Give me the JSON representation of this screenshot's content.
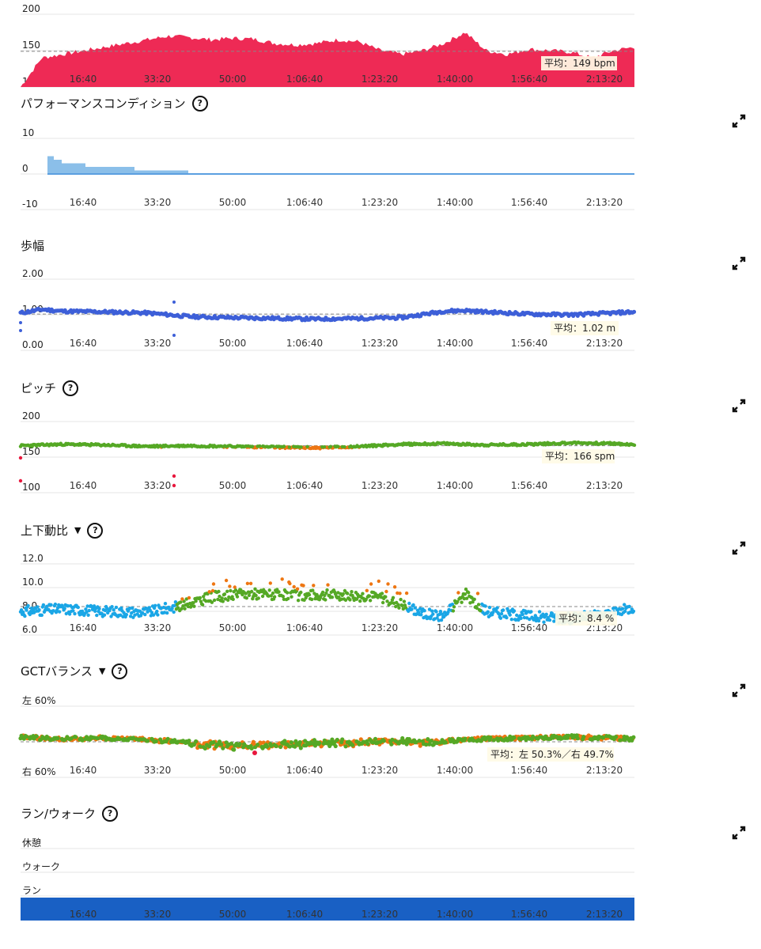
{
  "x_ticks": [
    "16:40",
    "33:20",
    "50:00",
    "1:06:40",
    "1:23:20",
    "1:40:00",
    "1:56:40",
    "2:13:20"
  ],
  "colors": {
    "heart_rate": "#ee2a55",
    "performance": "#8bbfe9",
    "performance_line": "#5b9fe0",
    "stride": "#3d5fd8",
    "green": "#55a825",
    "orange": "#ee7612",
    "blue": "#1aa6e6",
    "red": "#e8173d",
    "run_walk": "#1960c4",
    "grid": "#e6e6e6"
  },
  "panels": {
    "heart_rate": {
      "y_labels": [
        "200",
        "150",
        "100"
      ],
      "avg_label": "平均：149 bpm",
      "chart_data": {
        "type": "area",
        "y_ticks": [
          100,
          150,
          200
        ],
        "avg": 149,
        "x": [
          0,
          5,
          10,
          15,
          20,
          25,
          30,
          35,
          40,
          45,
          50,
          55,
          60,
          65,
          70,
          75,
          80,
          85,
          90,
          95,
          100,
          105,
          110,
          115,
          120,
          125,
          130,
          135,
          140,
          145
        ],
        "y": [
          100,
          140,
          145,
          150,
          155,
          160,
          165,
          170,
          168,
          165,
          167,
          166,
          160,
          158,
          160,
          165,
          162,
          150,
          145,
          150,
          160,
          175,
          150,
          145,
          152,
          150,
          148,
          140,
          150,
          155
        ],
        "ylim": [
          100,
          200
        ]
      }
    },
    "performance": {
      "title": "パフォーマンスコンディション",
      "y_labels": [
        "10",
        "0",
        "-10"
      ],
      "chart_data": {
        "type": "area",
        "y_ticks": [
          -10,
          0,
          10
        ],
        "x": [
          0,
          1,
          3,
          5,
          10,
          20,
          30,
          40,
          80,
          145
        ],
        "y": [
          5,
          5,
          4,
          3,
          2,
          2,
          1,
          0,
          0,
          0
        ],
        "ylim": [
          -10,
          10
        ]
      }
    },
    "stride": {
      "title": "歩幅",
      "y_labels": [
        "2.00",
        "1.00",
        "0.00"
      ],
      "avg_label": "平均：1.02 m",
      "chart_data": {
        "type": "scatter",
        "y_ticks": [
          0,
          1,
          2
        ],
        "avg": 1.02,
        "x": [
          0,
          5,
          10,
          20,
          30,
          40,
          50,
          60,
          70,
          80,
          90,
          100,
          105,
          110,
          120,
          130,
          140,
          145
        ],
        "y": [
          1.05,
          1.15,
          1.1,
          1.08,
          1.05,
          0.95,
          0.92,
          0.9,
          0.88,
          0.9,
          0.92,
          1.1,
          1.12,
          1.08,
          1.02,
          1.0,
          1.05,
          1.08
        ],
        "ylim": [
          0,
          2
        ]
      }
    },
    "cadence": {
      "title": "ピッチ",
      "y_labels": [
        "200",
        "150",
        "100"
      ],
      "avg_label": "平均：166 spm",
      "chart_data": {
        "type": "scatter",
        "y_ticks": [
          100,
          150,
          200
        ],
        "avg": 166,
        "x": [
          0,
          10,
          20,
          30,
          40,
          50,
          60,
          70,
          80,
          90,
          100,
          110,
          120,
          130,
          140,
          145
        ],
        "y": [
          166,
          168,
          167,
          165,
          166,
          165,
          164,
          163,
          165,
          168,
          169,
          167,
          168,
          170,
          169,
          167
        ],
        "ylim": [
          100,
          200
        ]
      }
    },
    "vertical_ratio": {
      "title": "上下動比",
      "y_labels": [
        "12.0",
        "10.0",
        "8.0",
        "6.0"
      ],
      "avg_label": "平均：8.4 %",
      "chart_data": {
        "type": "scatter",
        "y_ticks": [
          6,
          8,
          10,
          12
        ],
        "avg": 8.4,
        "x": [
          0,
          10,
          20,
          30,
          38,
          45,
          55,
          65,
          75,
          85,
          90,
          95,
          100,
          105,
          110,
          120,
          130,
          140,
          145
        ],
        "y": [
          8.0,
          8.2,
          8.0,
          7.9,
          8.5,
          9.2,
          9.5,
          9.3,
          9.4,
          9.2,
          8.6,
          7.8,
          7.6,
          9.5,
          8.0,
          7.6,
          7.4,
          7.8,
          8.4
        ],
        "ylim": [
          6,
          12
        ]
      }
    },
    "gct_balance": {
      "title": "GCTバランス",
      "y_labels": [
        "左 60%",
        "右 60%"
      ],
      "avg_label": "平均：左 50.3%／右 49.7%",
      "chart_data": {
        "type": "scatter",
        "avg": 50.3,
        "ylim": [
          -60,
          60
        ],
        "x": [
          0,
          10,
          20,
          30,
          40,
          50,
          60,
          70,
          80,
          90,
          100,
          110,
          120,
          130,
          140,
          145
        ],
        "y": [
          50.5,
          50.3,
          50.4,
          50.2,
          50.0,
          49.8,
          49.9,
          50.1,
          50.2,
          50.3,
          50.1,
          50.3,
          50.4,
          50.5,
          50.4,
          50.3
        ]
      }
    },
    "run_walk": {
      "title": "ラン/ウォーク",
      "y_labels": [
        "休憩",
        "ウォーク",
        "ラン"
      ],
      "chart_data": {
        "type": "bar",
        "categories": [
          "休憩",
          "ウォーク",
          "ラン"
        ],
        "values": [
          0,
          0,
          1
        ]
      }
    }
  }
}
